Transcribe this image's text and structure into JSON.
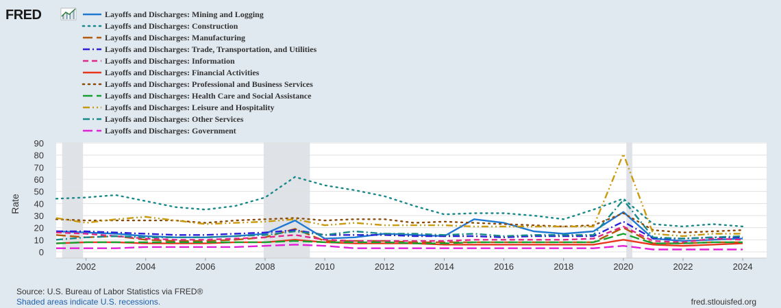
{
  "logo": {
    "text": "FRED",
    "icon": "chart-line-icon"
  },
  "footer": {
    "source": "Source: U.S. Bureau of Labor Statistics via FRED®",
    "recession_note": "Shaded areas indicate U.S. recessions.",
    "site": "fred.stlouisfed.org"
  },
  "chart_data": {
    "type": "line",
    "title": "",
    "xlabel": "",
    "ylabel": "Rate",
    "xlim": [
      2001,
      2024.8
    ],
    "ylim": [
      0,
      90
    ],
    "y_ticks": [
      0,
      10,
      20,
      30,
      40,
      50,
      60,
      70,
      80,
      90
    ],
    "x_ticks": [
      2002,
      2004,
      2006,
      2008,
      2010,
      2012,
      2014,
      2016,
      2018,
      2020,
      2022,
      2024
    ],
    "grid": true,
    "legend_position": "top-left",
    "recessions": [
      [
        2001.2,
        2001.9
      ],
      [
        2007.95,
        2009.5
      ],
      [
        2020.1,
        2020.3
      ]
    ],
    "x": [
      2001,
      2002,
      2003,
      2004,
      2005,
      2006,
      2007,
      2008,
      2009,
      2010,
      2011,
      2012,
      2013,
      2014,
      2015,
      2016,
      2017,
      2018,
      2019,
      2020,
      2021,
      2022,
      2023,
      2024
    ],
    "series": [
      {
        "name": "Layoffs and Discharges: Mining and Logging",
        "color": "#1f78d1",
        "dash": "solid",
        "values": [
          17,
          16,
          15,
          13,
          12,
          12,
          13,
          15,
          26,
          11,
          12,
          15,
          14,
          13,
          27,
          24,
          17,
          15,
          17,
          33,
          11,
          9,
          10,
          11
        ]
      },
      {
        "name": "Layoffs and Discharges: Construction",
        "color": "#17898b",
        "dash": "dot",
        "values": [
          44,
          45,
          47,
          42,
          37,
          35,
          38,
          45,
          62,
          55,
          51,
          46,
          38,
          31,
          32,
          32,
          30,
          27,
          35,
          44,
          23,
          21,
          23,
          21
        ]
      },
      {
        "name": "Layoffs and Discharges: Manufacturing",
        "color": "#b35806",
        "dash": "longdash",
        "values": [
          14,
          12,
          13,
          10,
          9,
          9,
          10,
          12,
          19,
          9,
          9,
          9,
          8,
          8,
          8,
          8,
          8,
          8,
          8,
          20,
          7,
          7,
          8,
          8
        ]
      },
      {
        "name": "Layoffs and Discharges: Trade, Transportation, and Utilities",
        "color": "#2a1fd6",
        "dash": "dashdot",
        "values": [
          17,
          17,
          16,
          15,
          14,
          14,
          15,
          16,
          18,
          14,
          14,
          14,
          13,
          13,
          13,
          12,
          13,
          13,
          13,
          25,
          11,
          11,
          12,
          12
        ]
      },
      {
        "name": "Layoffs and Discharges: Information",
        "color": "#e0288a",
        "dash": "dash",
        "values": [
          16,
          15,
          13,
          11,
          10,
          10,
          11,
          12,
          14,
          10,
          9,
          9,
          9,
          9,
          10,
          10,
          10,
          10,
          11,
          21,
          9,
          8,
          11,
          10
        ]
      },
      {
        "name": "Layoffs and Discharges: Financial Activities",
        "color": "#e8361e",
        "dash": "solid",
        "values": [
          7,
          8,
          8,
          7,
          7,
          7,
          8,
          8,
          10,
          8,
          7,
          7,
          7,
          6,
          6,
          6,
          6,
          6,
          6,
          10,
          6,
          5,
          6,
          7
        ]
      },
      {
        "name": "Layoffs and Discharges: Professional and Business Services",
        "color": "#8c4a0a",
        "dash": "dot",
        "values": [
          27,
          26,
          26,
          26,
          26,
          24,
          26,
          27,
          28,
          26,
          27,
          27,
          24,
          25,
          24,
          23,
          22,
          21,
          22,
          32,
          18,
          16,
          17,
          18
        ]
      },
      {
        "name": "Layoffs and Discharges: Health Care and Social Assistance",
        "color": "#16a02e",
        "dash": "longdash",
        "values": [
          7,
          8,
          8,
          8,
          8,
          8,
          8,
          8,
          9,
          8,
          8,
          8,
          7,
          7,
          8,
          8,
          8,
          8,
          8,
          15,
          7,
          7,
          8,
          8
        ]
      },
      {
        "name": "Layoffs and Discharges: Leisure and Hospitality",
        "color": "#c99a0e",
        "dash": "dashdotdot",
        "values": [
          28,
          24,
          27,
          29,
          26,
          23,
          24,
          25,
          27,
          22,
          24,
          22,
          22,
          22,
          21,
          21,
          21,
          21,
          21,
          81,
          15,
          13,
          15,
          15
        ]
      },
      {
        "name": "Layoffs and Discharges: Other Services",
        "color": "#17898b",
        "dash": "dashdot",
        "values": [
          10,
          12,
          13,
          12,
          12,
          12,
          13,
          14,
          17,
          14,
          17,
          15,
          15,
          14,
          15,
          13,
          14,
          14,
          14,
          43,
          12,
          11,
          12,
          13
        ]
      },
      {
        "name": "Layoffs and Discharges: Government",
        "color": "#e01fd6",
        "dash": "longdash",
        "values": [
          3,
          3,
          3,
          4,
          4,
          4,
          4,
          5,
          6,
          5,
          3,
          3,
          3,
          3,
          3,
          3,
          3,
          3,
          3,
          5,
          2,
          2,
          2,
          2
        ]
      }
    ]
  }
}
